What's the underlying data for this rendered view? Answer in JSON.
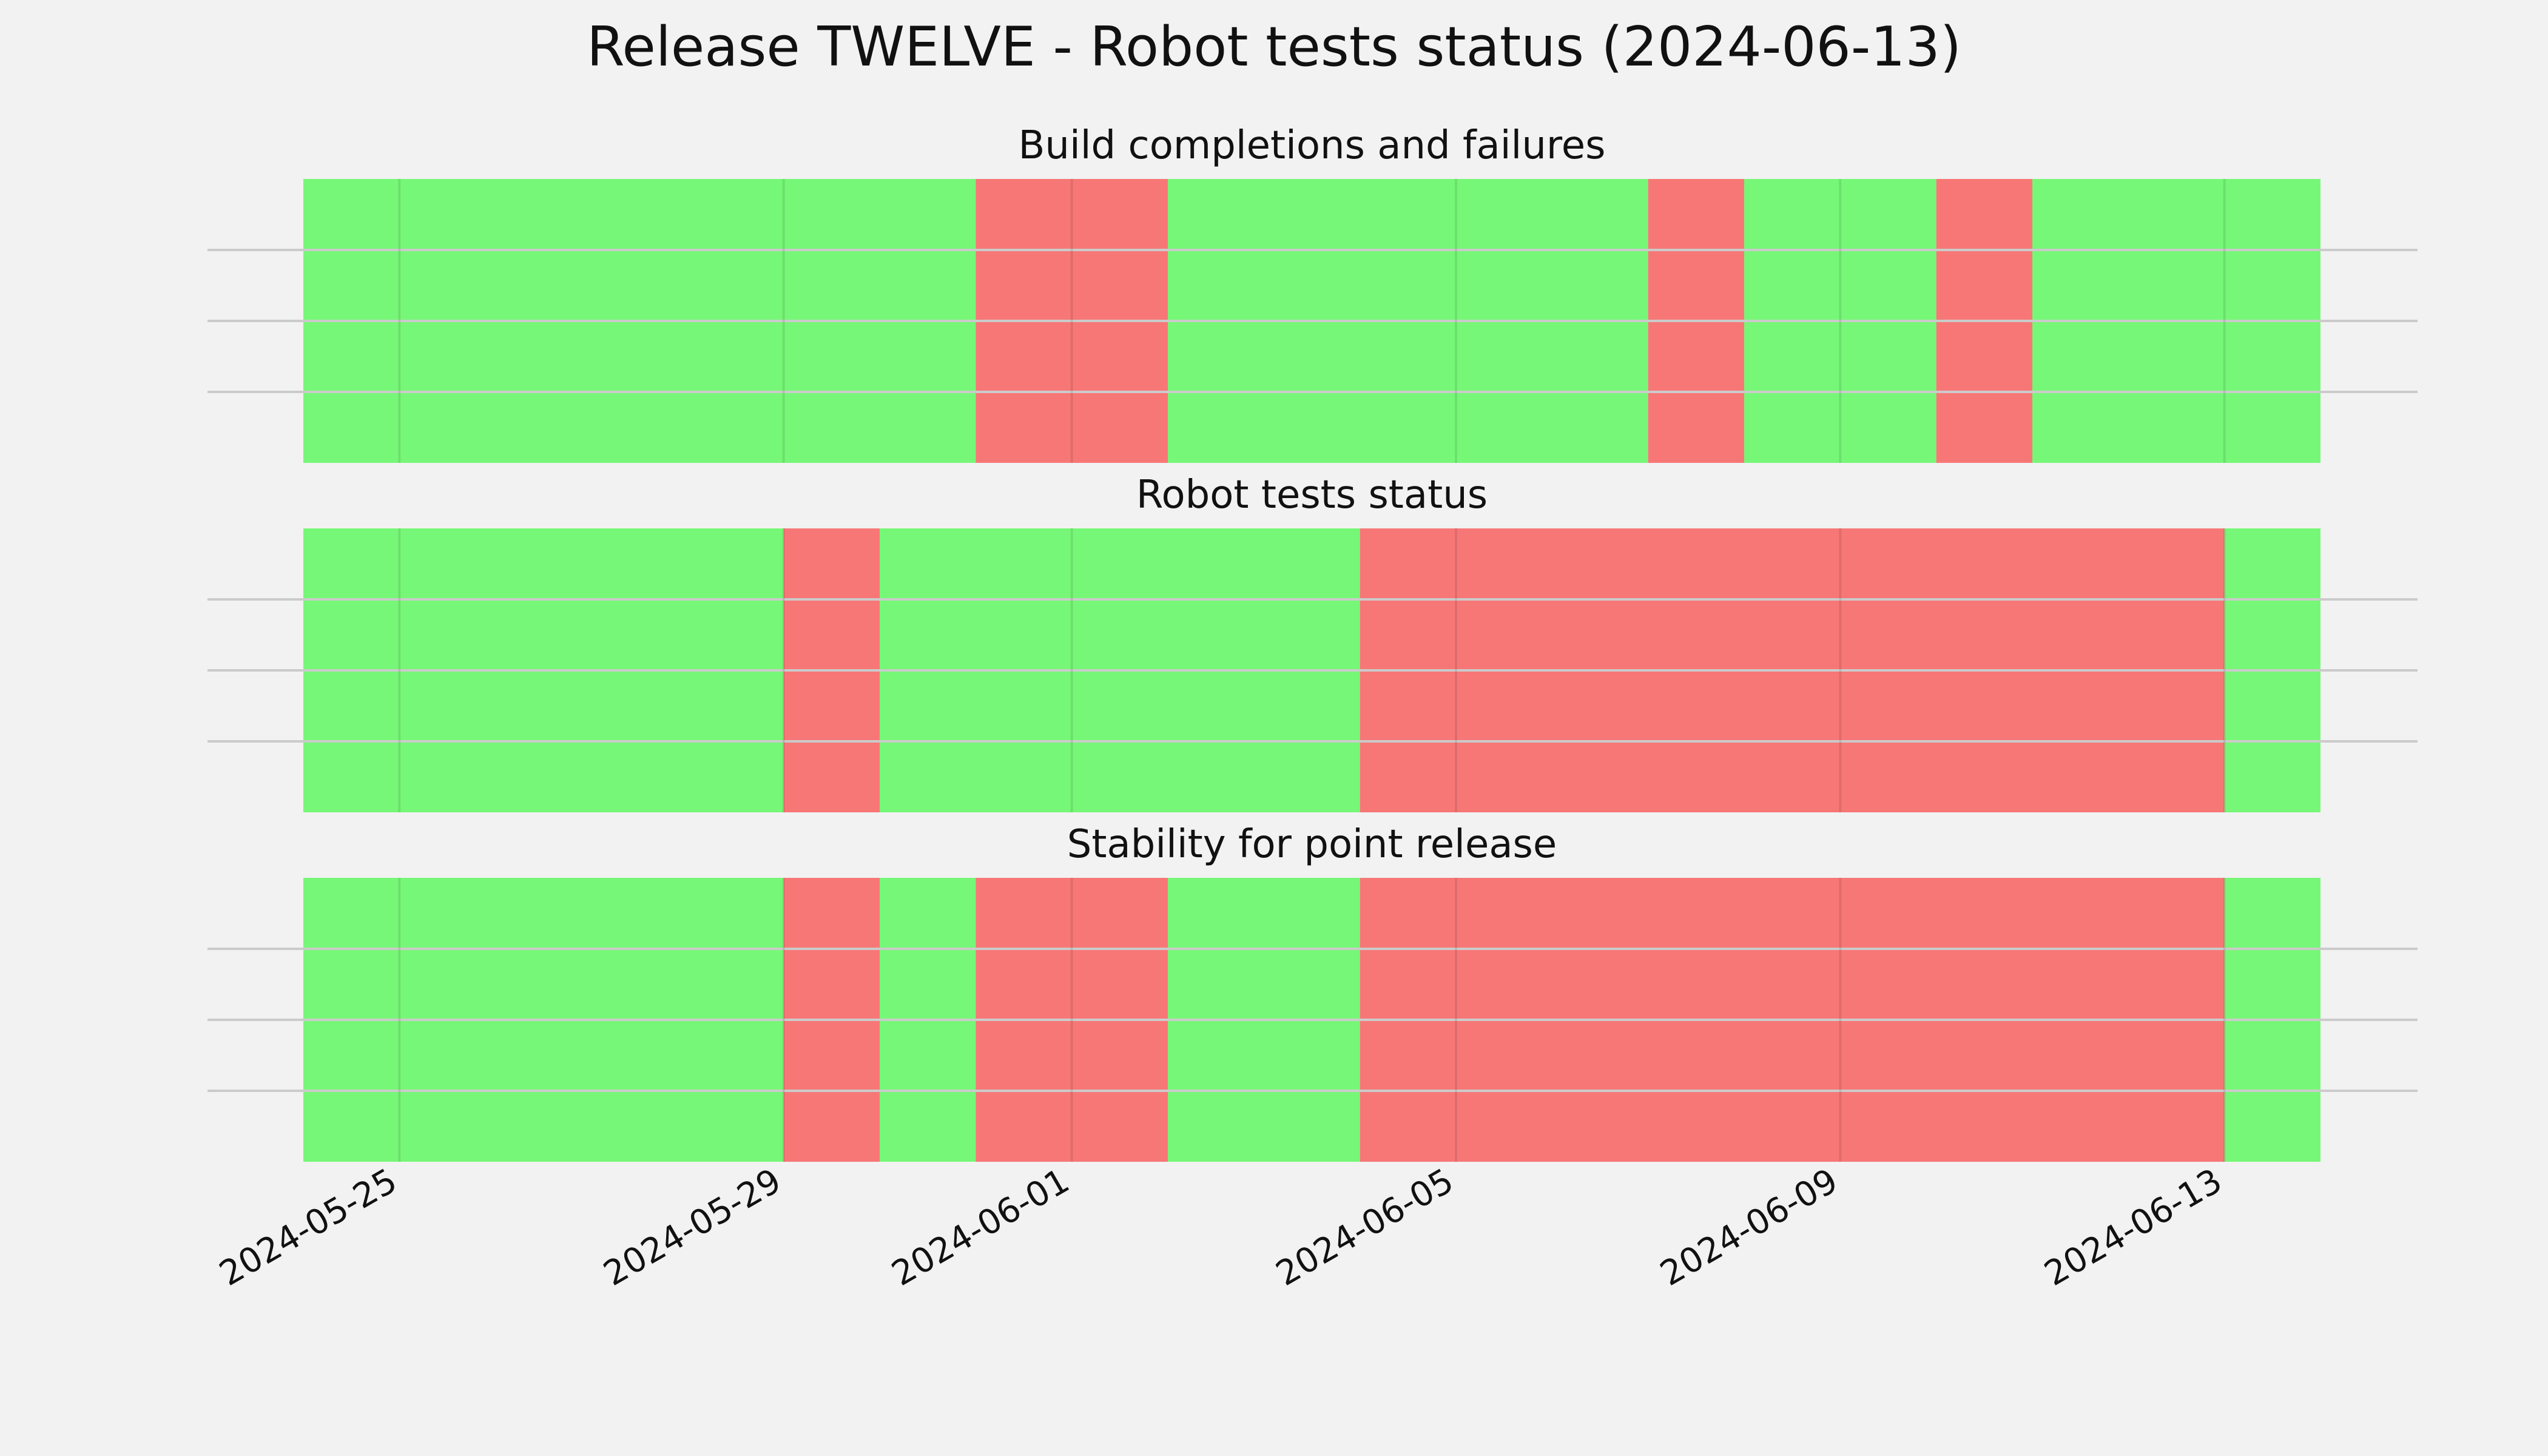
{
  "figure": {
    "title": "Release TWELVE - Robot tests status (2024-06-13)"
  },
  "colors": {
    "background": "#f2f2f2",
    "pass": "#77f777",
    "fail": "#f77777",
    "grid": "#cbcbcb"
  },
  "chart_data": {
    "type": "timeline",
    "x_range": [
      "2024-05-24",
      "2024-06-14"
    ],
    "x_ticks": [
      "2024-05-25",
      "2024-05-29",
      "2024-06-01",
      "2024-06-05",
      "2024-06-09",
      "2024-06-13"
    ],
    "grid": true,
    "panels": [
      {
        "title": "Build completions and failures",
        "segments": [
          {
            "start": "2024-05-24",
            "end": "2024-05-31",
            "status": "pass"
          },
          {
            "start": "2024-05-31",
            "end": "2024-06-02",
            "status": "fail"
          },
          {
            "start": "2024-06-02",
            "end": "2024-06-07",
            "status": "pass"
          },
          {
            "start": "2024-06-07",
            "end": "2024-06-08",
            "status": "fail"
          },
          {
            "start": "2024-06-08",
            "end": "2024-06-10",
            "status": "pass"
          },
          {
            "start": "2024-06-10",
            "end": "2024-06-11",
            "status": "fail"
          },
          {
            "start": "2024-06-11",
            "end": "2024-06-14",
            "status": "pass"
          }
        ]
      },
      {
        "title": "Robot tests status",
        "segments": [
          {
            "start": "2024-05-24",
            "end": "2024-05-29",
            "status": "pass"
          },
          {
            "start": "2024-05-29",
            "end": "2024-05-30",
            "status": "fail"
          },
          {
            "start": "2024-05-30",
            "end": "2024-06-04",
            "status": "pass"
          },
          {
            "start": "2024-06-04",
            "end": "2024-06-13",
            "status": "fail"
          },
          {
            "start": "2024-06-13",
            "end": "2024-06-14",
            "status": "pass"
          }
        ]
      },
      {
        "title": "Stability for point release",
        "segments": [
          {
            "start": "2024-05-24",
            "end": "2024-05-29",
            "status": "pass"
          },
          {
            "start": "2024-05-29",
            "end": "2024-05-30",
            "status": "fail"
          },
          {
            "start": "2024-05-30",
            "end": "2024-05-31",
            "status": "pass"
          },
          {
            "start": "2024-05-31",
            "end": "2024-06-02",
            "status": "fail"
          },
          {
            "start": "2024-06-02",
            "end": "2024-06-04",
            "status": "pass"
          },
          {
            "start": "2024-06-04",
            "end": "2024-06-13",
            "status": "fail"
          },
          {
            "start": "2024-06-13",
            "end": "2024-06-14",
            "status": "pass"
          }
        ]
      }
    ]
  }
}
